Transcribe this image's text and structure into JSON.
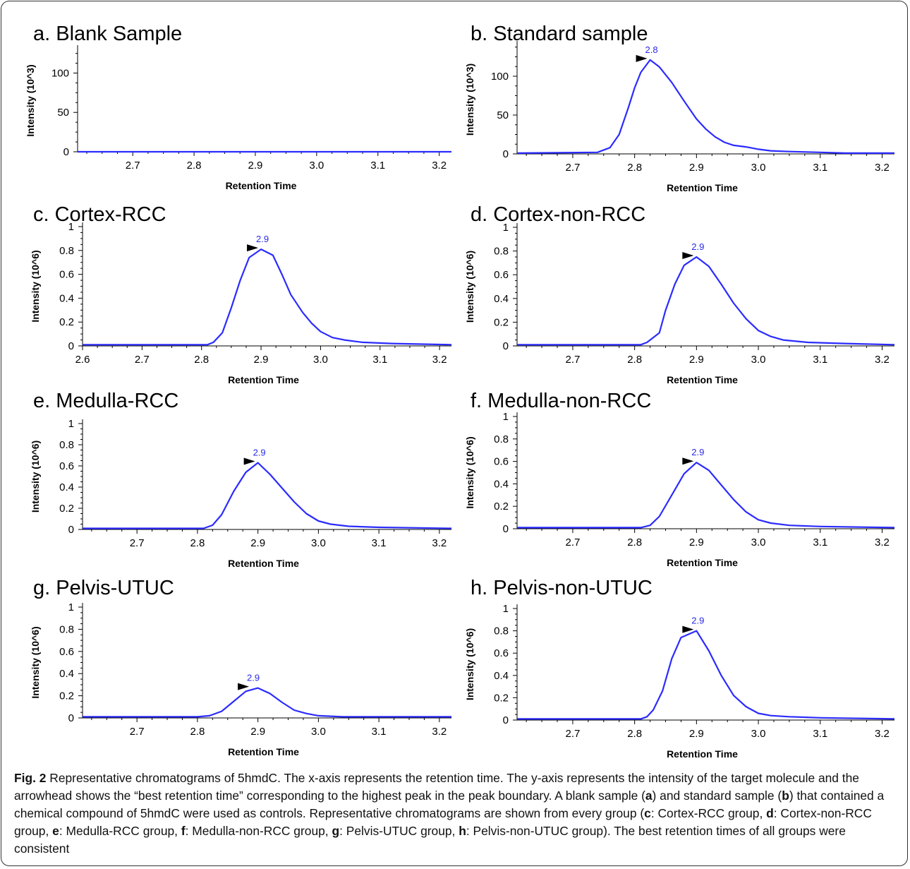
{
  "chart_data": [
    {
      "type": "line",
      "title": "a. Blank Sample",
      "xlabel": "Retention Time",
      "ylabel": "Intensity (10^3)",
      "xlim": [
        2.61,
        3.22
      ],
      "ylim": [
        0,
        130
      ],
      "xticks": [
        "2.7",
        "2.8",
        "2.9",
        "3.0",
        "3.1",
        "3.2"
      ],
      "yticks": [
        "0",
        "50",
        "100"
      ],
      "x": [
        2.61,
        3.22
      ],
      "y": [
        0,
        0
      ],
      "peak": null
    },
    {
      "type": "line",
      "title": "b. Standard sample",
      "xlabel": "Retention Time",
      "ylabel": "Intensity (10^3)",
      "xlim": [
        2.61,
        3.22
      ],
      "ylim": [
        0,
        140
      ],
      "xticks": [
        "2.7",
        "2.8",
        "2.9",
        "3.0",
        "3.1",
        "3.2"
      ],
      "yticks": [
        "0",
        "50",
        "100"
      ],
      "x": [
        2.61,
        2.74,
        2.76,
        2.775,
        2.79,
        2.8,
        2.81,
        2.825,
        2.84,
        2.86,
        2.88,
        2.9,
        2.915,
        2.93,
        2.945,
        2.96,
        2.98,
        3.0,
        3.02,
        3.05,
        3.1,
        3.14,
        3.22
      ],
      "y": [
        1,
        2,
        8,
        25,
        60,
        85,
        105,
        121,
        112,
        92,
        68,
        45,
        32,
        22,
        15,
        11,
        9,
        6,
        4,
        3,
        2,
        1,
        1
      ],
      "peak": {
        "label": "2.8",
        "x": 2.825,
        "y": 121
      }
    },
    {
      "type": "line",
      "title": "c. Cortex-RCC",
      "xlabel": "Retention Time",
      "ylabel": "Intensity (10^6)",
      "xlim": [
        2.6,
        3.22
      ],
      "ylim": [
        0,
        1
      ],
      "xticks": [
        "2.6",
        "2.7",
        "2.8",
        "2.9",
        "3.0",
        "3.1",
        "3.2"
      ],
      "yticks": [
        "0",
        "0.2",
        "0.4",
        "0.6",
        "0.8",
        "1"
      ],
      "x": [
        2.6,
        2.81,
        2.82,
        2.835,
        2.85,
        2.865,
        2.88,
        2.9,
        2.92,
        2.935,
        2.95,
        2.97,
        2.985,
        3.0,
        3.02,
        3.04,
        3.07,
        3.12,
        3.22
      ],
      "y": [
        0.01,
        0.01,
        0.03,
        0.11,
        0.32,
        0.55,
        0.74,
        0.81,
        0.76,
        0.6,
        0.43,
        0.28,
        0.19,
        0.12,
        0.07,
        0.05,
        0.03,
        0.02,
        0.01
      ],
      "peak": {
        "label": "2.9",
        "x": 2.9,
        "y": 0.81
      }
    },
    {
      "type": "line",
      "title": "d. Cortex-non-RCC",
      "xlabel": "Retention Time",
      "ylabel": "Intensity (10^6)",
      "xlim": [
        2.61,
        3.22
      ],
      "ylim": [
        0,
        1
      ],
      "xticks": [
        "2.7",
        "2.8",
        "2.9",
        "3.0",
        "3.1",
        "3.2"
      ],
      "yticks": [
        "0",
        "0.2",
        "0.4",
        "0.6",
        "0.8",
        "1"
      ],
      "x": [
        2.61,
        2.81,
        2.82,
        2.84,
        2.85,
        2.865,
        2.88,
        2.9,
        2.92,
        2.94,
        2.96,
        2.98,
        3.0,
        3.02,
        3.04,
        3.08,
        3.14,
        3.22
      ],
      "y": [
        0.01,
        0.01,
        0.03,
        0.11,
        0.3,
        0.52,
        0.68,
        0.75,
        0.67,
        0.52,
        0.36,
        0.23,
        0.13,
        0.08,
        0.05,
        0.03,
        0.02,
        0.01
      ],
      "peak": {
        "label": "2.9",
        "x": 2.9,
        "y": 0.75
      }
    },
    {
      "type": "line",
      "title": "e. Medulla-RCC",
      "xlabel": "Retention Time",
      "ylabel": "Intensity (10^6)",
      "xlim": [
        2.61,
        3.22
      ],
      "ylim": [
        0,
        1
      ],
      "xticks": [
        "2.7",
        "2.8",
        "2.9",
        "3.0",
        "3.1",
        "3.2"
      ],
      "yticks": [
        "0",
        "0.2",
        "0.4",
        "0.6",
        "0.8",
        "1"
      ],
      "x": [
        2.61,
        2.81,
        2.825,
        2.84,
        2.86,
        2.88,
        2.9,
        2.92,
        2.94,
        2.96,
        2.98,
        3.0,
        3.02,
        3.05,
        3.1,
        3.22
      ],
      "y": [
        0.01,
        0.01,
        0.04,
        0.14,
        0.36,
        0.54,
        0.63,
        0.52,
        0.39,
        0.26,
        0.15,
        0.08,
        0.05,
        0.03,
        0.02,
        0.01
      ],
      "peak": {
        "label": "2.9",
        "x": 2.9,
        "y": 0.63
      }
    },
    {
      "type": "line",
      "title": "f. Medulla-non-RCC",
      "xlabel": "Retention Time",
      "ylabel": "Intensity (10^6)",
      "xlim": [
        2.61,
        3.22
      ],
      "ylim": [
        0,
        1
      ],
      "xticks": [
        "2.7",
        "2.8",
        "2.9",
        "3.0",
        "3.1",
        "3.2"
      ],
      "yticks": [
        "0",
        "0.2",
        "0.4",
        "0.6",
        "0.8",
        "1"
      ],
      "x": [
        2.61,
        2.81,
        2.825,
        2.84,
        2.86,
        2.88,
        2.9,
        2.92,
        2.94,
        2.96,
        2.98,
        3.0,
        3.02,
        3.05,
        3.1,
        3.22
      ],
      "y": [
        0.01,
        0.01,
        0.03,
        0.11,
        0.3,
        0.49,
        0.59,
        0.52,
        0.39,
        0.26,
        0.15,
        0.08,
        0.05,
        0.03,
        0.02,
        0.01
      ],
      "peak": {
        "label": "2.9",
        "x": 2.9,
        "y": 0.59
      }
    },
    {
      "type": "line",
      "title": "g. Pelvis-UTUC",
      "xlabel": "Retention Time",
      "ylabel": "Intensity (10^6)",
      "xlim": [
        2.61,
        3.22
      ],
      "ylim": [
        0,
        1
      ],
      "xticks": [
        "2.7",
        "2.8",
        "2.9",
        "3.0",
        "3.1",
        "3.2"
      ],
      "yticks": [
        "0",
        "0.2",
        "0.4",
        "0.6",
        "0.8",
        "1"
      ],
      "x": [
        2.61,
        2.8,
        2.82,
        2.84,
        2.86,
        2.88,
        2.9,
        2.92,
        2.94,
        2.96,
        2.98,
        3.0,
        3.04,
        3.1,
        3.22
      ],
      "y": [
        0.01,
        0.01,
        0.02,
        0.06,
        0.15,
        0.24,
        0.27,
        0.22,
        0.14,
        0.07,
        0.04,
        0.02,
        0.01,
        0.01,
        0.01
      ],
      "peak": {
        "label": "2.9",
        "x": 2.89,
        "y": 0.27
      }
    },
    {
      "type": "line",
      "title": "h. Pelvis-non-UTUC",
      "xlabel": "Retention Time",
      "ylabel": "Intensity (10^6)",
      "xlim": [
        2.61,
        3.22
      ],
      "ylim": [
        0,
        1
      ],
      "xticks": [
        "2.7",
        "2.8",
        "2.9",
        "3.0",
        "3.1",
        "3.2"
      ],
      "yticks": [
        "0",
        "0.2",
        "0.4",
        "0.6",
        "0.8",
        "1"
      ],
      "x": [
        2.61,
        2.81,
        2.82,
        2.83,
        2.845,
        2.86,
        2.875,
        2.9,
        2.92,
        2.94,
        2.96,
        2.98,
        3.0,
        3.02,
        3.05,
        3.1,
        3.22
      ],
      "y": [
        0.01,
        0.01,
        0.03,
        0.09,
        0.26,
        0.55,
        0.74,
        0.8,
        0.62,
        0.4,
        0.22,
        0.12,
        0.06,
        0.04,
        0.03,
        0.02,
        0.01
      ],
      "peak": {
        "label": "2.9",
        "x": 2.9,
        "y": 0.8
      }
    }
  ],
  "caption": {
    "label": "Fig. 2",
    "text_1": " Representative chromatograms of 5hmdC. The x-axis represents the retention time. The y-axis represents the intensity of the target molecule and the arrowhead shows the “best retention time” corresponding to the highest peak in the peak boundary. A blank sample (",
    "a": "a",
    "text_2": ") and standard sample (",
    "b": "b",
    "text_3": ") that contained a chemical compound of 5hmdC were used as controls. Representative chromatograms are shown from every group (",
    "c": "c",
    "text_4": ": Cortex-RCC group, ",
    "d": "d",
    "text_5": ": Cortex-non-RCC group, ",
    "e": "e",
    "text_6": ": Medulla-RCC group, ",
    "f": "f",
    "text_7": ": Medulla-non-RCC group, ",
    "g": "g",
    "text_8": ": Pelvis-UTUC group, ",
    "h": "h",
    "text_9": ": Pelvis-non-UTUC group). The best retention times of all groups were consistent"
  },
  "colors": {
    "line": "#2b2bff",
    "peak_label": "#2a2ae6",
    "axis": "#000000"
  }
}
